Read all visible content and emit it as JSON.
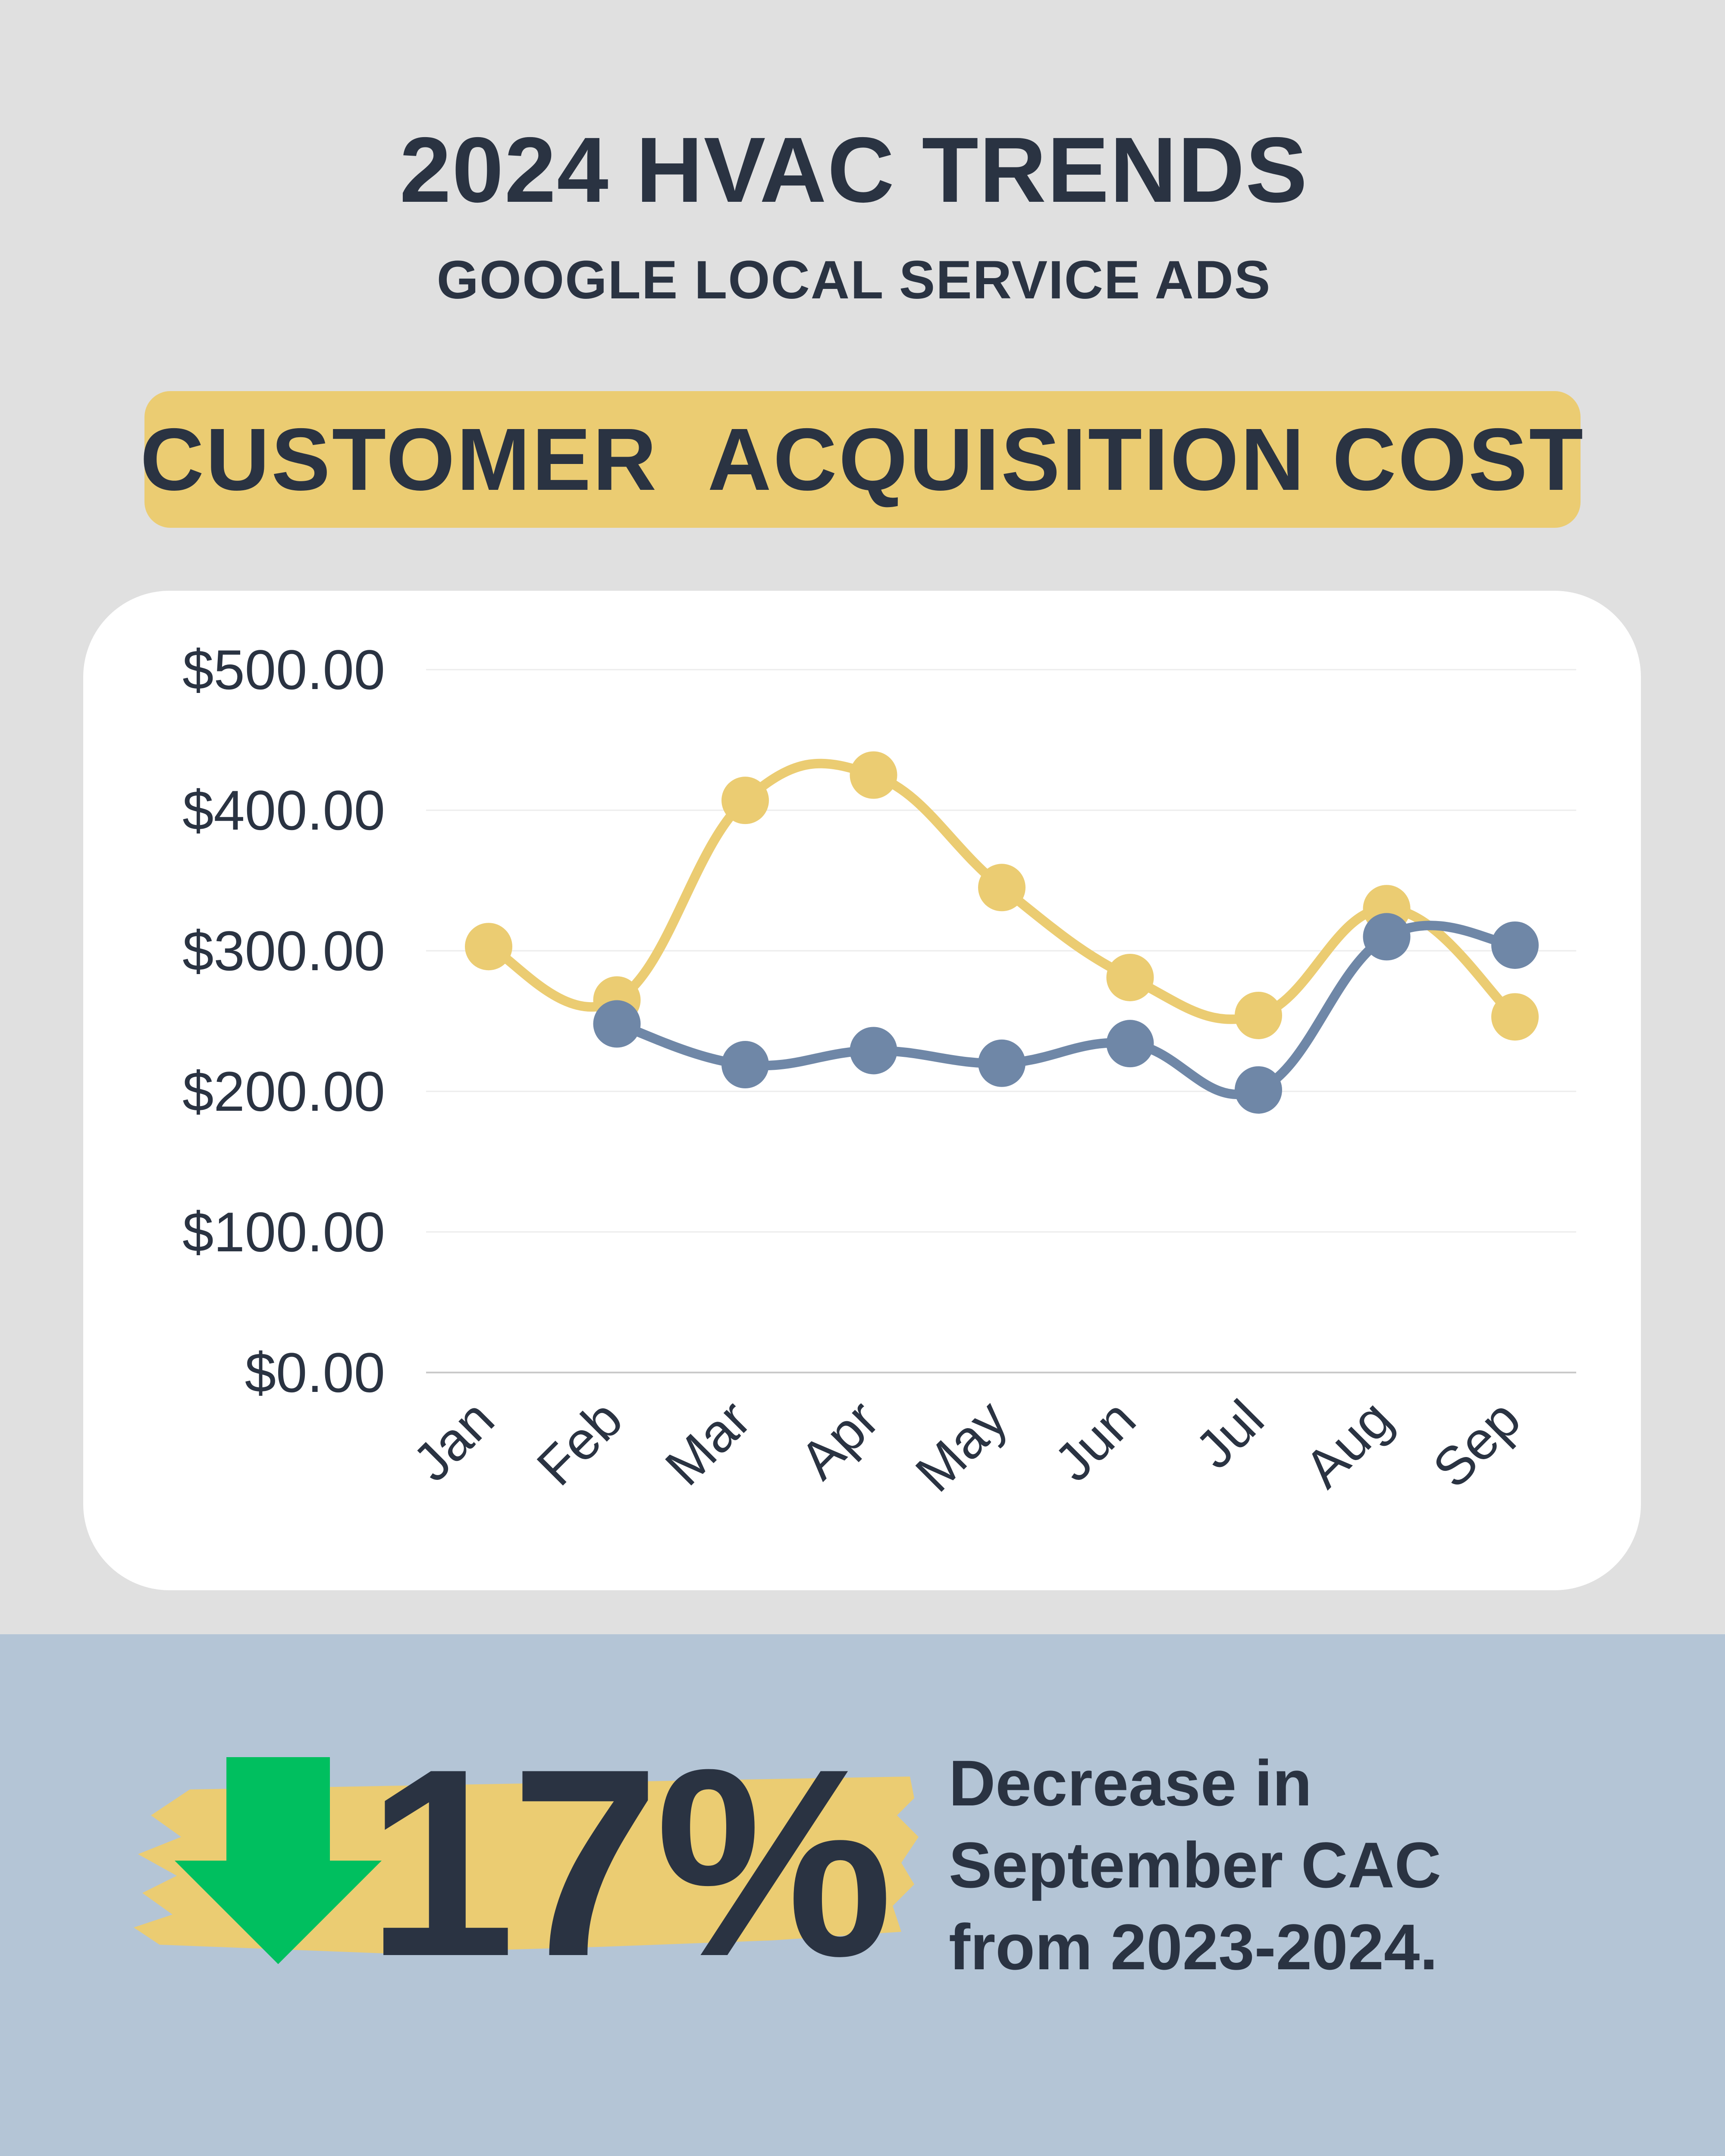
{
  "header": {
    "title": "2024 HVAC TRENDS",
    "subtitle": "GOOGLE LOCAL SERVICE ADS",
    "banner": "CUSTOMER  ACQUISITION COST"
  },
  "colors": {
    "accent_yellow": "#ebcc72",
    "series_blue": "#6f87a7",
    "arrow_green": "#00bf5f",
    "text_dark": "#2a3342",
    "bottom_panel": "#b4c5d6"
  },
  "chart_data": {
    "type": "line",
    "smooth": true,
    "categories": [
      "Jan",
      "Feb",
      "Mar",
      "Apr",
      "May",
      "Jun",
      "Jul",
      "Aug",
      "Sep"
    ],
    "series": [
      {
        "color": "#ebcc72",
        "values": [
          303,
          265,
          407,
          425,
          345,
          281,
          254,
          330,
          253
        ]
      },
      {
        "color": "#6f87a7",
        "values": [
          null,
          248,
          219,
          229,
          220,
          234,
          201,
          310,
          304
        ]
      }
    ],
    "yticks": [
      "$0.00",
      "$100.00",
      "$200.00",
      "$300.00",
      "$400.00",
      "$500.00"
    ],
    "ylim": [
      0,
      500
    ],
    "grid": true,
    "legend": "none"
  },
  "stat": {
    "value": "17%",
    "direction_icon": "down-arrow-icon",
    "lines": [
      "Decrease in",
      "September CAC",
      "from 2023-2024."
    ]
  }
}
